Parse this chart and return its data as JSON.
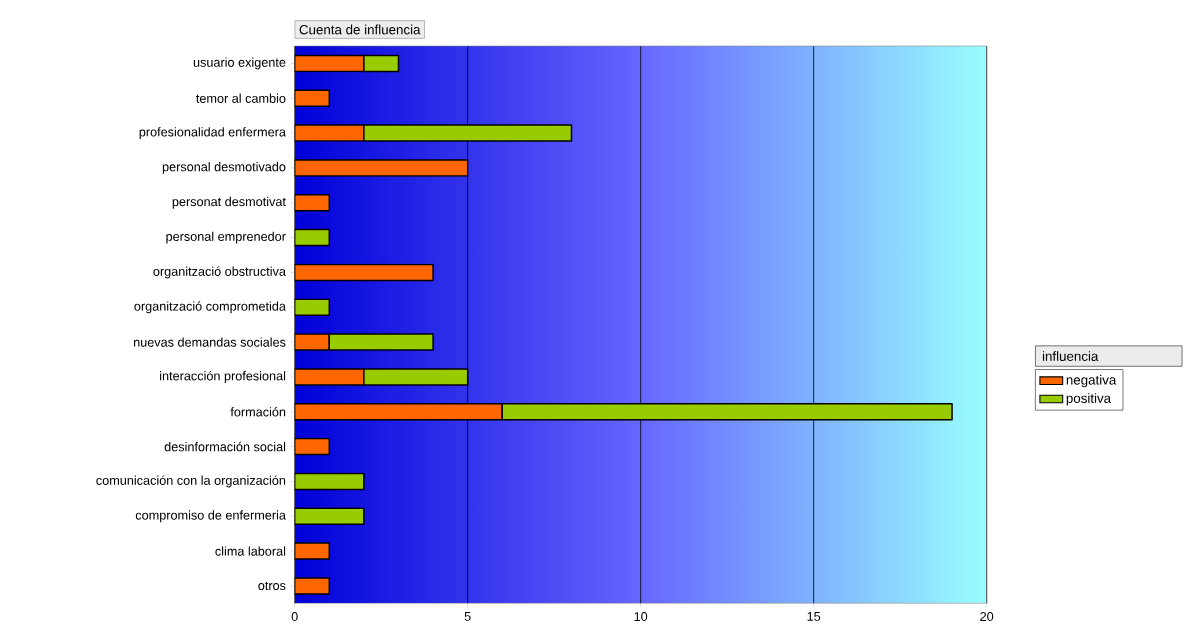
{
  "chart_data": {
    "type": "bar",
    "orientation": "horizontal",
    "stacked": true,
    "title": "Cuenta de influencia",
    "legend_title": "influencia",
    "legend": "right",
    "grid": "x",
    "categories": [
      "usuario exigente",
      "temor al cambio",
      "profesionalidad enfermera",
      "personal desmotivado",
      "personat desmotivat",
      "personal emprenedor",
      "organització obstructiva",
      "organització comprometida",
      "nuevas demandas sociales",
      "interacción profesional",
      "formación",
      "desinformación social",
      "comunicación con la organización",
      "compromiso de enfermeria",
      "clima laboral",
      "otros"
    ],
    "series": [
      {
        "name": "negativa",
        "color": "#ff6600",
        "values": [
          2,
          1,
          2,
          5,
          1,
          null,
          4,
          null,
          1,
          2,
          6,
          1,
          null,
          null,
          1,
          1
        ]
      },
      {
        "name": "positiva",
        "color": "#99cc00",
        "values": [
          1,
          null,
          6,
          null,
          null,
          1,
          null,
          1,
          3,
          3,
          13,
          null,
          2,
          2,
          null,
          null
        ]
      }
    ],
    "xlim": [
      0,
      20
    ],
    "xticks": [
      0,
      5,
      10,
      15,
      20
    ]
  }
}
